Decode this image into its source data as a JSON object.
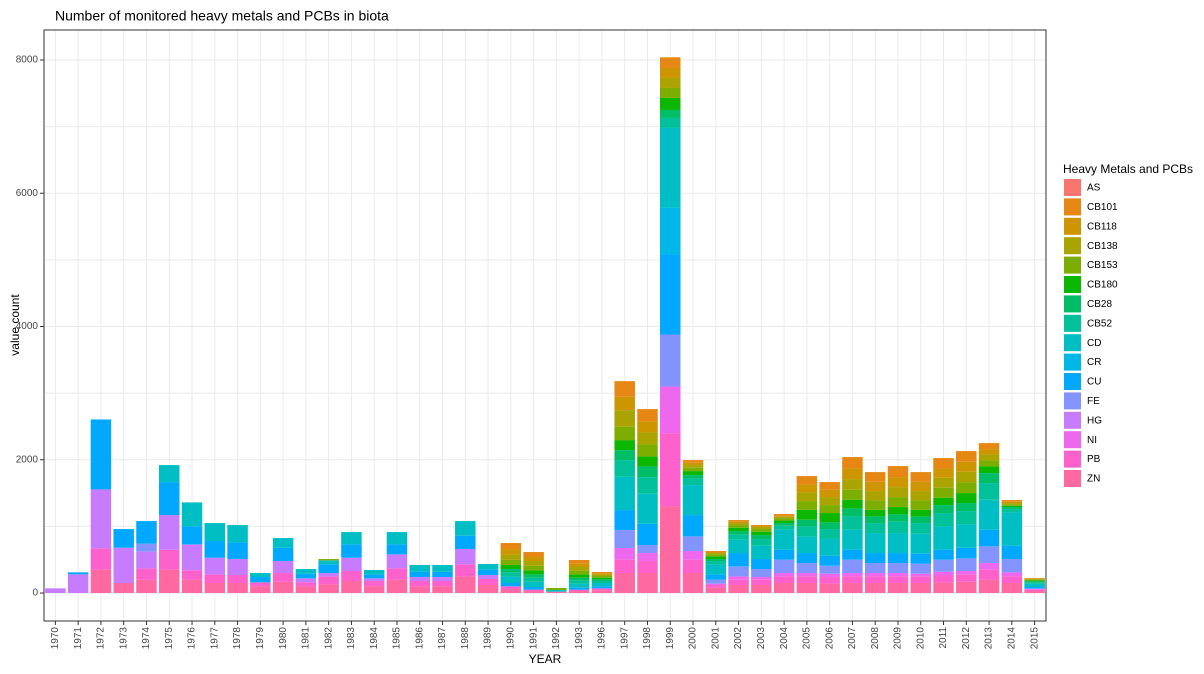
{
  "chart_data": {
    "type": "stacked-bar",
    "title": "Number of monitored heavy metals and PCBs in biota",
    "x_label": "YEAR",
    "y_label": "value count",
    "legend_title": "Heavy Metals and PCBs",
    "legend_position": "right",
    "grid": true,
    "ylim": [
      -420,
      8450
    ],
    "yticks": [
      0,
      2000,
      4000,
      6000,
      8000
    ],
    "categories": [
      "1970",
      "1971",
      "1972",
      "1973",
      "1974",
      "1975",
      "1976",
      "1977",
      "1978",
      "1979",
      "1980",
      "1981",
      "1982",
      "1983",
      "1984",
      "1985",
      "1986",
      "1987",
      "1988",
      "1989",
      "1990",
      "1991",
      "1992",
      "1993",
      "1996",
      "1997",
      "1998",
      "1999",
      "2000",
      "2001",
      "2002",
      "2003",
      "2004",
      "2005",
      "2006",
      "2007",
      "2008",
      "2009",
      "2010",
      "2011",
      "2012",
      "2013",
      "2014",
      "2015"
    ],
    "series": [
      {
        "name": "AS",
        "color": "#F8766D",
        "values": [
          0,
          0,
          0,
          0,
          0,
          0,
          0,
          0,
          0,
          0,
          0,
          0,
          0,
          0,
          0,
          0,
          0,
          0,
          0,
          0,
          0,
          0,
          0,
          0,
          0,
          0,
          0,
          0,
          0,
          0,
          0,
          0,
          0,
          0,
          0,
          0,
          0,
          0,
          0,
          0,
          0,
          0,
          0,
          0
        ]
      },
      {
        "name": "CB101",
        "color": "#E68613",
        "values": [
          0,
          0,
          0,
          0,
          0,
          0,
          0,
          0,
          0,
          0,
          0,
          0,
          0,
          0,
          0,
          0,
          0,
          0,
          0,
          0,
          90,
          75,
          0,
          55,
          20,
          235,
          180,
          160,
          40,
          15,
          25,
          15,
          20,
          125,
          115,
          170,
          145,
          165,
          145,
          155,
          160,
          90,
          25,
          10
        ]
      },
      {
        "name": "CB118",
        "color": "#CD9600",
        "values": [
          0,
          0,
          0,
          0,
          0,
          0,
          0,
          0,
          0,
          0,
          0,
          0,
          0,
          0,
          0,
          0,
          0,
          0,
          0,
          0,
          80,
          60,
          0,
          50,
          15,
          200,
          170,
          150,
          35,
          15,
          20,
          15,
          20,
          120,
          110,
          160,
          140,
          150,
          140,
          140,
          150,
          80,
          20,
          5
        ]
      },
      {
        "name": "CB138",
        "color": "#ABA300",
        "values": [
          0,
          0,
          0,
          0,
          0,
          0,
          0,
          0,
          0,
          0,
          0,
          0,
          0,
          0,
          0,
          0,
          0,
          0,
          0,
          0,
          80,
          70,
          0,
          55,
          25,
          250,
          180,
          150,
          40,
          20,
          30,
          30,
          25,
          130,
          120,
          160,
          140,
          150,
          140,
          150,
          160,
          90,
          20,
          10
        ]
      },
      {
        "name": "CB153",
        "color": "#7CAE00",
        "values": [
          0,
          0,
          0,
          0,
          0,
          0,
          0,
          0,
          0,
          0,
          0,
          0,
          20,
          0,
          0,
          0,
          0,
          0,
          0,
          0,
          80,
          70,
          30,
          55,
          25,
          200,
          180,
          150,
          50,
          30,
          40,
          40,
          30,
          130,
          120,
          150,
          140,
          150,
          140,
          150,
          160,
          90,
          20,
          10
        ]
      },
      {
        "name": "CB180",
        "color": "#0CB702",
        "values": [
          0,
          0,
          0,
          0,
          0,
          0,
          0,
          0,
          0,
          0,
          0,
          0,
          0,
          0,
          0,
          0,
          0,
          0,
          0,
          0,
          60,
          60,
          0,
          50,
          25,
          150,
          150,
          180,
          60,
          40,
          50,
          50,
          40,
          150,
          140,
          130,
          100,
          110,
          100,
          110,
          150,
          100,
          20,
          15
        ]
      },
      {
        "name": "CB28",
        "color": "#00BE67",
        "values": [
          0,
          0,
          0,
          0,
          0,
          0,
          0,
          0,
          0,
          0,
          0,
          0,
          0,
          0,
          0,
          0,
          0,
          0,
          0,
          0,
          50,
          50,
          0,
          40,
          25,
          150,
          160,
          120,
          50,
          30,
          50,
          60,
          40,
          100,
          100,
          120,
          100,
          110,
          100,
          120,
          120,
          150,
          30,
          15
        ]
      },
      {
        "name": "CB52",
        "color": "#00C19A",
        "values": [
          0,
          0,
          0,
          0,
          0,
          0,
          0,
          0,
          0,
          0,
          0,
          0,
          0,
          0,
          0,
          0,
          0,
          0,
          0,
          0,
          60,
          60,
          0,
          50,
          30,
          250,
          250,
          150,
          100,
          50,
          80,
          100,
          60,
          150,
          150,
          200,
          150,
          170,
          160,
          200,
          200,
          250,
          50,
          20
        ]
      },
      {
        "name": "CD",
        "color": "#00BFC4",
        "values": [
          0,
          0,
          0,
          0,
          0,
          255,
          360,
          270,
          260,
          60,
          145,
          70,
          60,
          185,
          65,
          185,
          100,
          100,
          220,
          85,
          100,
          80,
          25,
          60,
          50,
          500,
          450,
          1200,
          450,
          150,
          200,
          200,
          300,
          250,
          250,
          300,
          300,
          300,
          300,
          350,
          350,
          450,
          500,
          50
        ]
      },
      {
        "name": "CR",
        "color": "#00B8E7",
        "values": [
          0,
          0,
          0,
          0,
          0,
          0,
          0,
          0,
          0,
          0,
          0,
          0,
          0,
          0,
          0,
          0,
          0,
          0,
          0,
          0,
          0,
          0,
          0,
          0,
          0,
          0,
          0,
          700,
          0,
          0,
          0,
          0,
          0,
          0,
          0,
          0,
          0,
          0,
          0,
          0,
          0,
          0,
          0,
          0
        ]
      },
      {
        "name": "CU",
        "color": "#00A9FF",
        "values": [
          0,
          30,
          1050,
          280,
          340,
          495,
          270,
          250,
          250,
          80,
          200,
          70,
          130,
          200,
          60,
          150,
          80,
          80,
          200,
          80,
          50,
          40,
          0,
          30,
          30,
          300,
          320,
          1200,
          320,
          80,
          200,
          150,
          150,
          150,
          150,
          150,
          150,
          150,
          150,
          150,
          160,
          250,
          200,
          20
        ]
      },
      {
        "name": "FE",
        "color": "#8494FF",
        "values": [
          0,
          0,
          0,
          0,
          120,
          0,
          0,
          0,
          0,
          0,
          0,
          0,
          0,
          0,
          0,
          0,
          0,
          0,
          0,
          0,
          0,
          0,
          0,
          0,
          0,
          270,
          120,
          780,
          220,
          60,
          150,
          120,
          200,
          150,
          120,
          200,
          150,
          150,
          150,
          180,
          190,
          250,
          200,
          10
        ]
      },
      {
        "name": "HG",
        "color": "#C77CFF",
        "values": [
          70,
          280,
          885,
          530,
          250,
          520,
          390,
          250,
          240,
          0,
          180,
          60,
          50,
          200,
          40,
          210,
          60,
          60,
          230,
          60,
          0,
          0,
          0,
          0,
          0,
          0,
          0,
          0,
          0,
          0,
          0,
          0,
          0,
          0,
          0,
          0,
          0,
          0,
          0,
          0,
          0,
          0,
          0,
          0
        ]
      },
      {
        "name": "NI",
        "color": "#ED68ED",
        "values": [
          0,
          0,
          0,
          0,
          0,
          0,
          0,
          0,
          0,
          0,
          0,
          0,
          0,
          0,
          0,
          0,
          0,
          0,
          0,
          0,
          0,
          0,
          0,
          0,
          0,
          175,
          120,
          700,
          130,
          20,
          50,
          40,
          50,
          50,
          50,
          50,
          50,
          50,
          40,
          50,
          50,
          100,
          60,
          10
        ]
      },
      {
        "name": "PB",
        "color": "#FF61CC",
        "values": [
          0,
          0,
          320,
          0,
          170,
          300,
          140,
          130,
          120,
          60,
          130,
          60,
          120,
          150,
          80,
          170,
          80,
          80,
          180,
          90,
          40,
          20,
          0,
          20,
          30,
          200,
          180,
          1100,
          200,
          40,
          80,
          80,
          100,
          100,
          100,
          100,
          100,
          100,
          100,
          110,
          110,
          150,
          100,
          20
        ]
      },
      {
        "name": "ZN",
        "color": "#FF68A1",
        "values": [
          0,
          0,
          350,
          150,
          200,
          350,
          200,
          150,
          150,
          100,
          170,
          100,
          130,
          180,
          100,
          200,
          100,
          100,
          250,
          120,
          60,
          30,
          20,
          30,
          40,
          300,
          300,
          1300,
          300,
          80,
          120,
          120,
          150,
          150,
          140,
          150,
          150,
          150,
          150,
          160,
          170,
          200,
          150,
          30
        ]
      }
    ]
  }
}
